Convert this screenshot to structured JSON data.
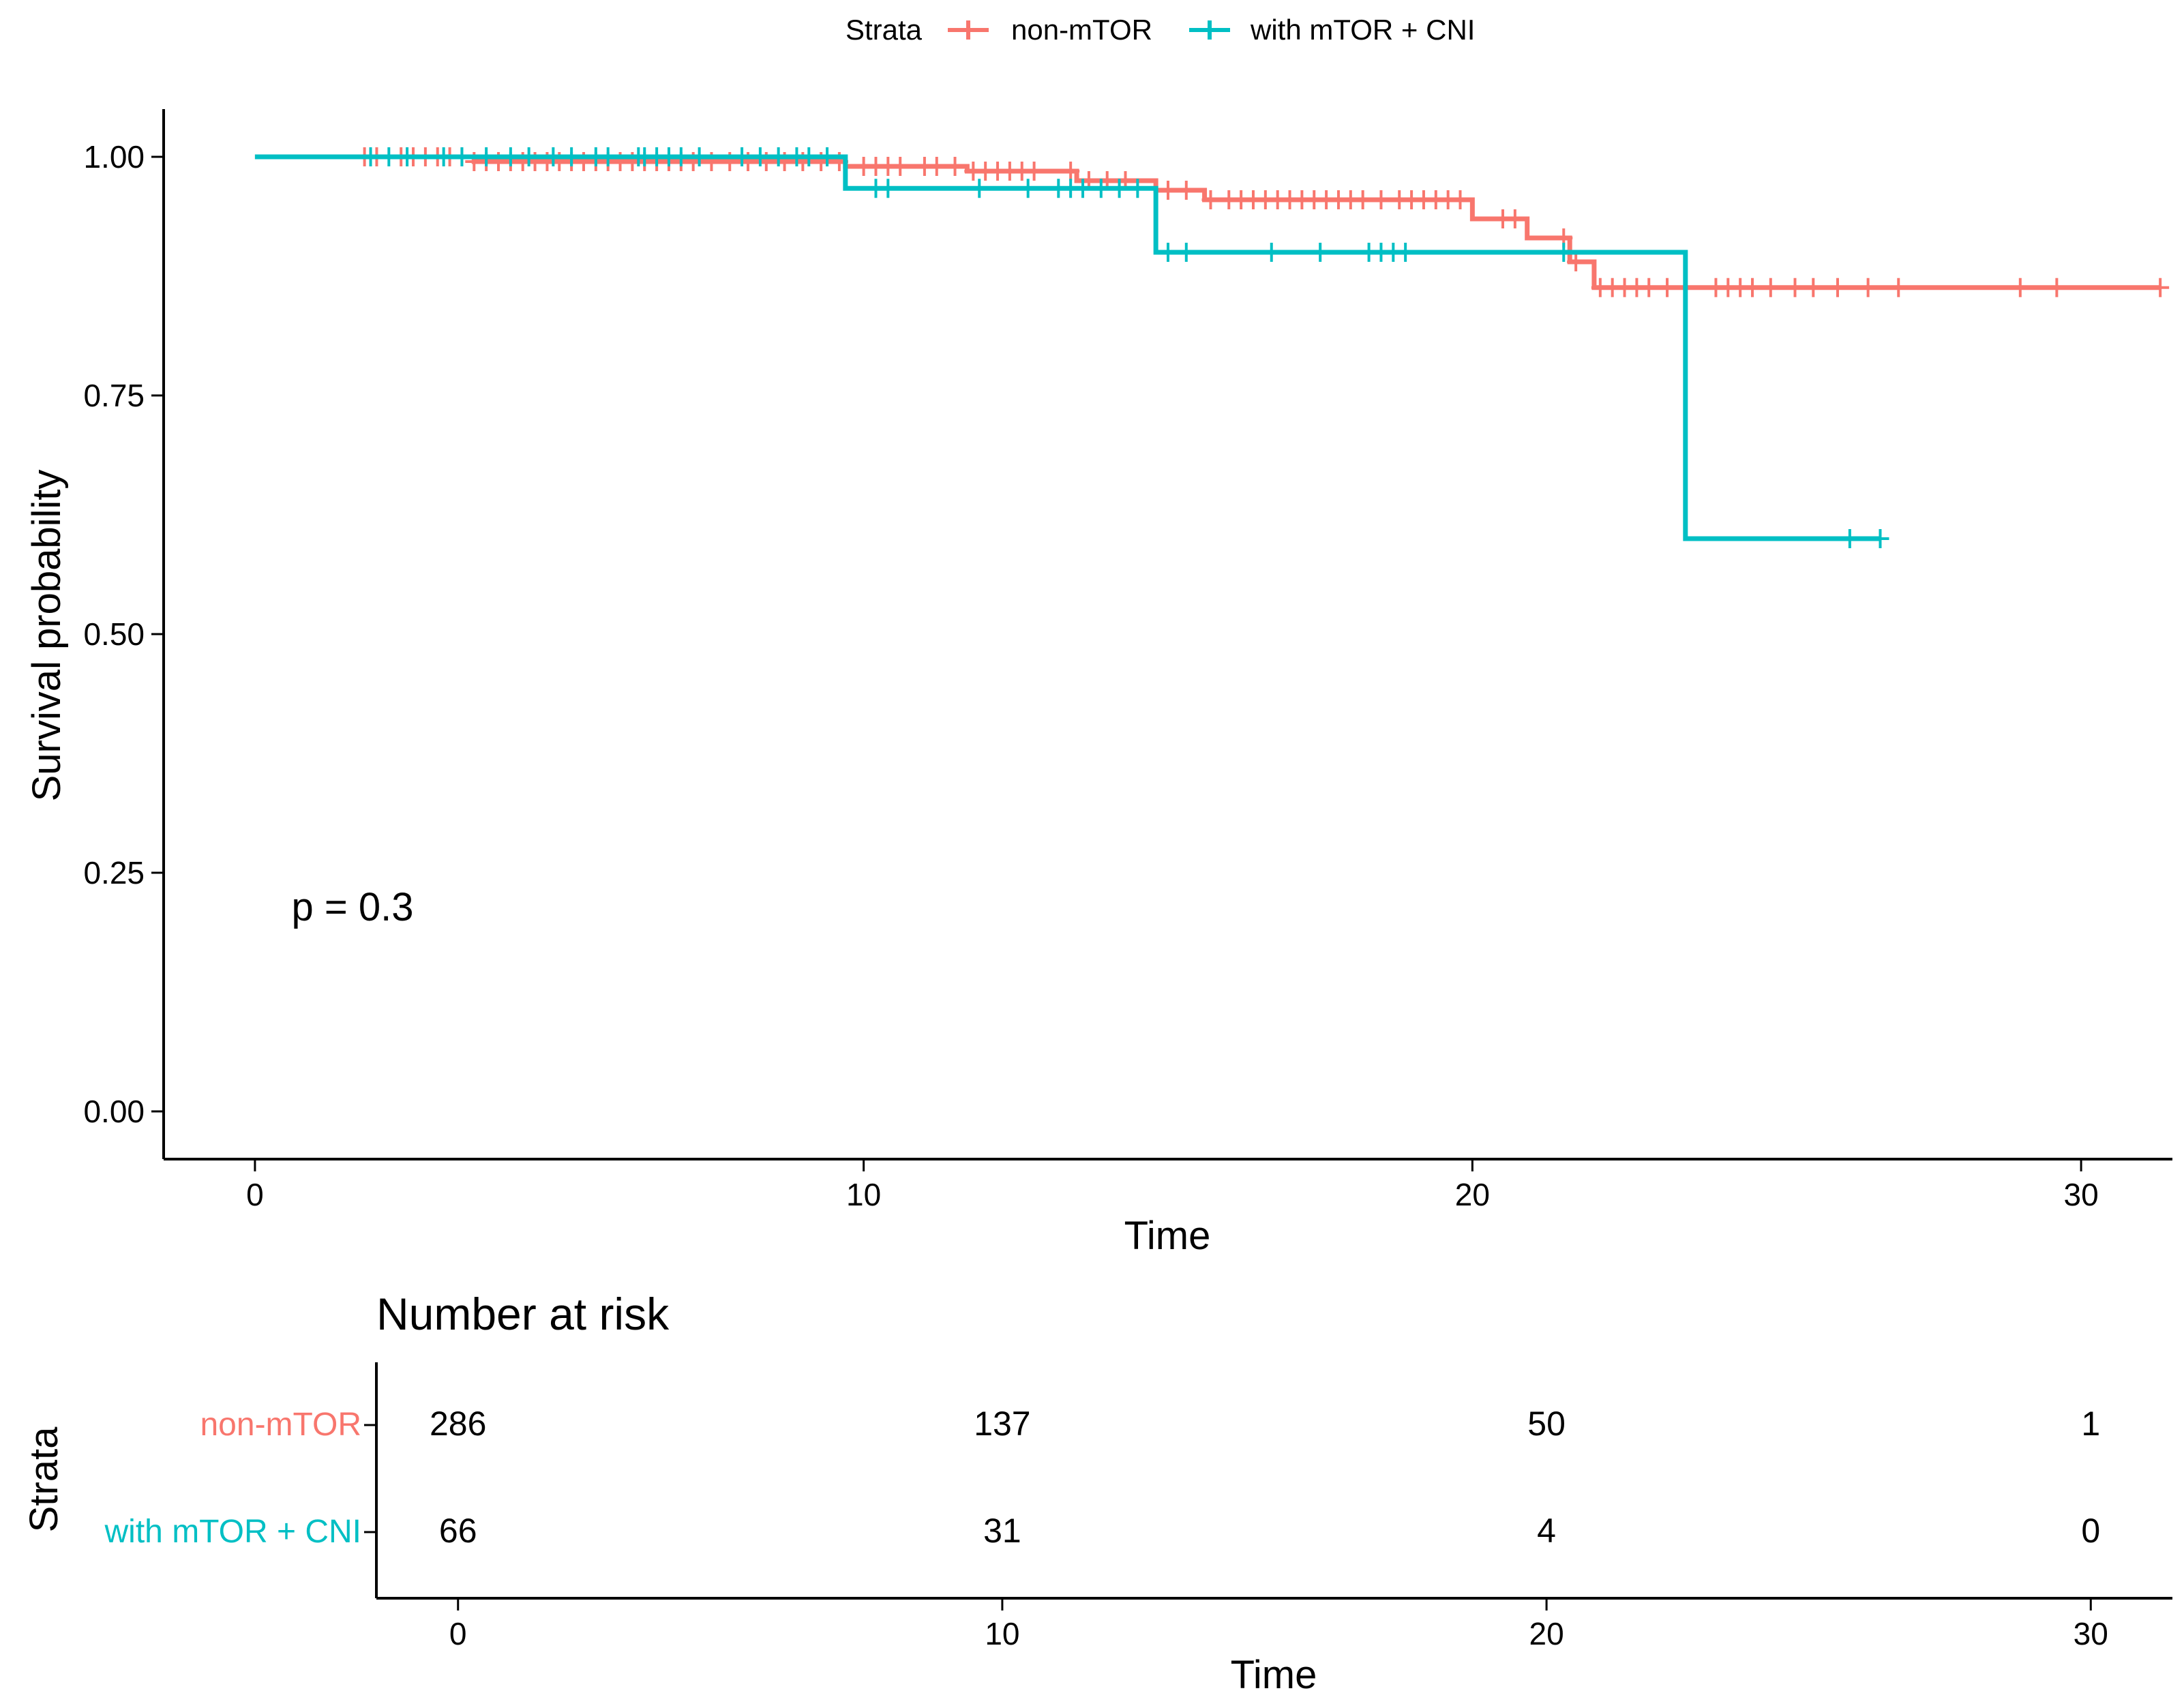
{
  "colors": {
    "non_mtor": "#F8766D",
    "with_mtor_cni": "#00BFC4",
    "axis": "#000000",
    "background": "#FFFFFF"
  },
  "legend": {
    "title": "Strata",
    "items": [
      "non-mTOR",
      "with mTOR + CNI"
    ]
  },
  "chart_data": [
    {
      "type": "line",
      "subtype": "kaplan-meier-step",
      "title": "",
      "xlabel": "Time",
      "ylabel": "Survival probability",
      "xlim": [
        -1.5,
        31.5
      ],
      "ylim": [
        -0.05,
        1.05
      ],
      "x_ticks": [
        0,
        10,
        20,
        30
      ],
      "x_tick_labels": [
        "0",
        "10",
        "20",
        "30"
      ],
      "y_ticks": [
        0,
        0.25,
        0.5,
        0.75,
        1.0
      ],
      "y_tick_labels": [
        "0.00",
        "0.25",
        "0.50",
        "0.75",
        "1.00"
      ],
      "grid": false,
      "legend_position": "top",
      "annotation": "p = 0.3",
      "annotation_at": [
        0.6,
        0.2
      ],
      "series": [
        {
          "name": "non-mTOR",
          "steps": [
            [
              0,
              1.0
            ],
            [
              3.6,
              0.995
            ],
            [
              9.7,
              0.99
            ],
            [
              11.7,
              0.985
            ],
            [
              13.5,
              0.975
            ],
            [
              14.8,
              0.965
            ],
            [
              15.6,
              0.955
            ],
            [
              20.0,
              0.935
            ],
            [
              20.9,
              0.915
            ],
            [
              21.6,
              0.89
            ],
            [
              22.0,
              0.863
            ],
            [
              31.3,
              0.863
            ]
          ],
          "censor_times": [
            1.8,
            2.0,
            2.4,
            2.6,
            2.8,
            3.0,
            3.2,
            3.4,
            3.6,
            3.8,
            4.0,
            4.2,
            4.4,
            4.6,
            4.8,
            5.0,
            5.2,
            5.4,
            5.6,
            5.8,
            6.0,
            6.2,
            6.4,
            6.6,
            6.8,
            7.0,
            7.2,
            7.5,
            7.8,
            8.1,
            8.4,
            8.7,
            9.0,
            9.3,
            9.6,
            10.0,
            10.2,
            10.4,
            10.6,
            11.0,
            11.2,
            11.5,
            11.8,
            12.0,
            12.2,
            12.4,
            12.6,
            12.8,
            13.4,
            13.7,
            14.0,
            14.3,
            15.0,
            15.3,
            15.7,
            16.0,
            16.2,
            16.4,
            16.6,
            16.8,
            17.0,
            17.2,
            17.4,
            17.6,
            17.8,
            18.0,
            18.2,
            18.5,
            18.8,
            19.0,
            19.2,
            19.4,
            19.6,
            19.8,
            20.5,
            20.7,
            21.5,
            21.7,
            22.1,
            22.3,
            22.5,
            22.7,
            22.9,
            23.2,
            24.0,
            24.2,
            24.4,
            24.6,
            24.9,
            25.3,
            25.6,
            26.0,
            26.5,
            27.0,
            29.0,
            29.6,
            31.3
          ]
        },
        {
          "name": "with mTOR + CNI",
          "steps": [
            [
              0,
              1.0
            ],
            [
              9.7,
              0.967
            ],
            [
              14.8,
              0.9
            ],
            [
              23.5,
              0.6
            ],
            [
              26.7,
              0.6
            ]
          ],
          "censor_times": [
            1.9,
            2.2,
            2.5,
            3.1,
            3.4,
            3.8,
            4.2,
            4.5,
            4.9,
            5.2,
            5.6,
            5.8,
            6.3,
            6.4,
            6.6,
            6.8,
            7.0,
            7.3,
            8.0,
            8.3,
            8.6,
            8.9,
            9.1,
            9.4,
            10.2,
            10.4,
            11.9,
            12.7,
            13.2,
            13.4,
            13.6,
            13.9,
            14.2,
            14.5,
            15.0,
            15.3,
            16.7,
            17.5,
            18.3,
            18.5,
            18.7,
            18.9,
            21.5,
            26.2,
            26.7
          ]
        }
      ]
    },
    {
      "type": "table",
      "title": "Number at risk",
      "xlabel": "Time",
      "ylabel": "Strata",
      "xlim": [
        -1.5,
        31.5
      ],
      "x_ticks": [
        0,
        10,
        20,
        30
      ],
      "x_tick_labels": [
        "0",
        "10",
        "20",
        "30"
      ],
      "rows": [
        "non-mTOR",
        "with mTOR + CNI"
      ],
      "values": [
        [
          "286",
          "137",
          "50",
          "1"
        ],
        [
          "66",
          "31",
          "4",
          "0"
        ]
      ]
    }
  ]
}
